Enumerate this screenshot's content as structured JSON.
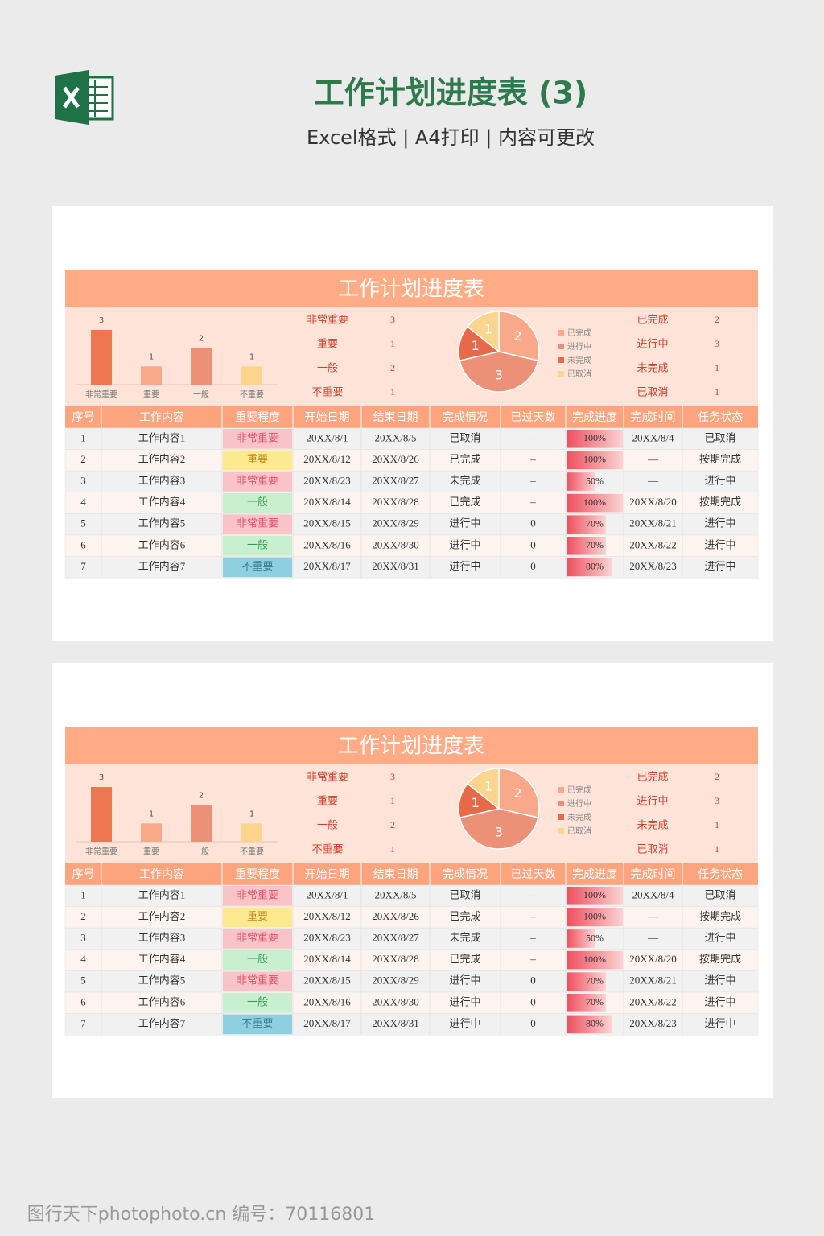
{
  "header": {
    "title": "工作计划进度表 (3)",
    "subtitle": "Excel格式 | A4打印 | 内容可更改"
  },
  "sheet": {
    "title": "工作计划进度表",
    "bar_chart": {
      "type": "bar",
      "categories": [
        "非常重要",
        "重要",
        "一般",
        "不重要"
      ],
      "values": [
        3,
        1,
        2,
        1
      ],
      "colors": [
        "#ee7752",
        "#f9a98a",
        "#ec9178",
        "#fbd48e"
      ]
    },
    "importance_summary": [
      {
        "label": "非常重要",
        "value": 3
      },
      {
        "label": "重要",
        "value": 1
      },
      {
        "label": "一般",
        "value": 2
      },
      {
        "label": "不重要",
        "value": 1
      }
    ],
    "pie_chart": {
      "type": "pie",
      "categories": [
        "已完成",
        "进行中",
        "未完成",
        "已取消"
      ],
      "values": [
        2,
        3,
        1,
        1
      ],
      "colors": [
        "#f9a98a",
        "#ec9178",
        "#e8684a",
        "#fbd48e"
      ]
    },
    "status_summary": [
      {
        "label": "已完成",
        "value": 2
      },
      {
        "label": "进行中",
        "value": 3
      },
      {
        "label": "未完成",
        "value": 1
      },
      {
        "label": "已取消",
        "value": 1
      }
    ],
    "table": {
      "columns": [
        "序号",
        "工作内容",
        "重要程度",
        "开始日期",
        "结束日期",
        "完成情况",
        "已过天数",
        "完成进度",
        "完成时间",
        "任务状态"
      ],
      "rows": [
        {
          "no": 1,
          "content": "工作内容1",
          "importance": "非常重要",
          "start": "20XX/8/1",
          "end": "20XX/8/5",
          "completion": "已取消",
          "elapsed": "–",
          "progress": 100,
          "progress_label": "100%",
          "finish": "20XX/8/4",
          "status": "已取消"
        },
        {
          "no": 2,
          "content": "工作内容2",
          "importance": "重要",
          "start": "20XX/8/12",
          "end": "20XX/8/26",
          "completion": "已完成",
          "elapsed": "–",
          "progress": 100,
          "progress_label": "100%",
          "finish": "—",
          "status": "按期完成"
        },
        {
          "no": 3,
          "content": "工作内容3",
          "importance": "非常重要",
          "start": "20XX/8/23",
          "end": "20XX/8/27",
          "completion": "未完成",
          "elapsed": "–",
          "progress": 50,
          "progress_label": "50%",
          "finish": "—",
          "status": "进行中"
        },
        {
          "no": 4,
          "content": "工作内容4",
          "importance": "一般",
          "start": "20XX/8/14",
          "end": "20XX/8/28",
          "completion": "已完成",
          "elapsed": "–",
          "progress": 100,
          "progress_label": "100%",
          "finish": "20XX/8/20",
          "status": "按期完成"
        },
        {
          "no": 5,
          "content": "工作内容5",
          "importance": "非常重要",
          "start": "20XX/8/15",
          "end": "20XX/8/29",
          "completion": "进行中",
          "elapsed": 0,
          "progress": 70,
          "progress_label": "70%",
          "finish": "20XX/8/21",
          "status": "进行中"
        },
        {
          "no": 6,
          "content": "工作内容6",
          "importance": "一般",
          "start": "20XX/8/16",
          "end": "20XX/8/30",
          "completion": "进行中",
          "elapsed": 0,
          "progress": 70,
          "progress_label": "70%",
          "finish": "20XX/8/22",
          "status": "进行中"
        },
        {
          "no": 7,
          "content": "工作内容7",
          "importance": "不重要",
          "start": "20XX/8/17",
          "end": "20XX/8/31",
          "completion": "进行中",
          "elapsed": 0,
          "progress": 80,
          "progress_label": "80%",
          "finish": "20XX/8/23",
          "status": "进行中"
        }
      ]
    }
  },
  "watermark": "图行天下photophoto.cn  编号：70116801"
}
